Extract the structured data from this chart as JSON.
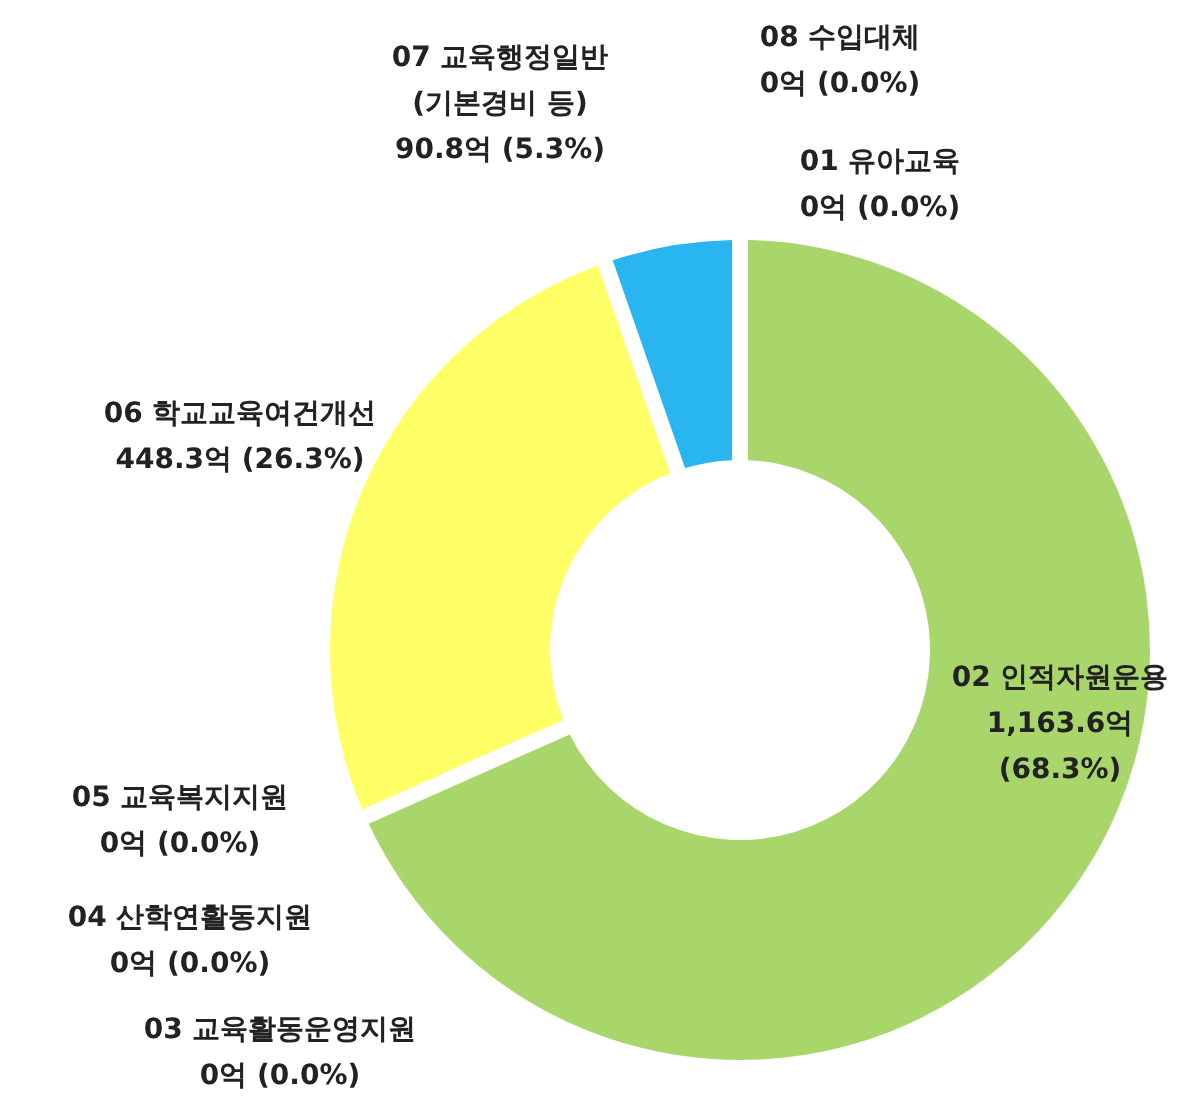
{
  "chart_data": {
    "type": "donut",
    "categories": [
      "01 유아교육",
      "02 인적자원운용",
      "03 교육활동운영지원",
      "04 산학연활동지원",
      "05 교육복지지원",
      "06 학교교육여건개선",
      "07 교육행정일반 (기본경비 등)",
      "08 수입대체"
    ],
    "values": [
      0,
      1163.6,
      0,
      0,
      0,
      448.3,
      90.8,
      0
    ],
    "value_labels": [
      "0억 (0.0%)",
      "1,163.6억 (68.3%)",
      "0억 (0.0%)",
      "0억 (0.0%)",
      "0억 (0.0%)",
      "448.3억 (26.3%)",
      "90.8억 (5.3%)",
      "0억 (0.0%)"
    ],
    "colors": [
      "#a5a5a5",
      "#a9d66b",
      "#5b9bd5",
      "#ed7d31",
      "#70ad47",
      "#ffff66",
      "#29b6f0",
      "#ffc000"
    ]
  }
}
